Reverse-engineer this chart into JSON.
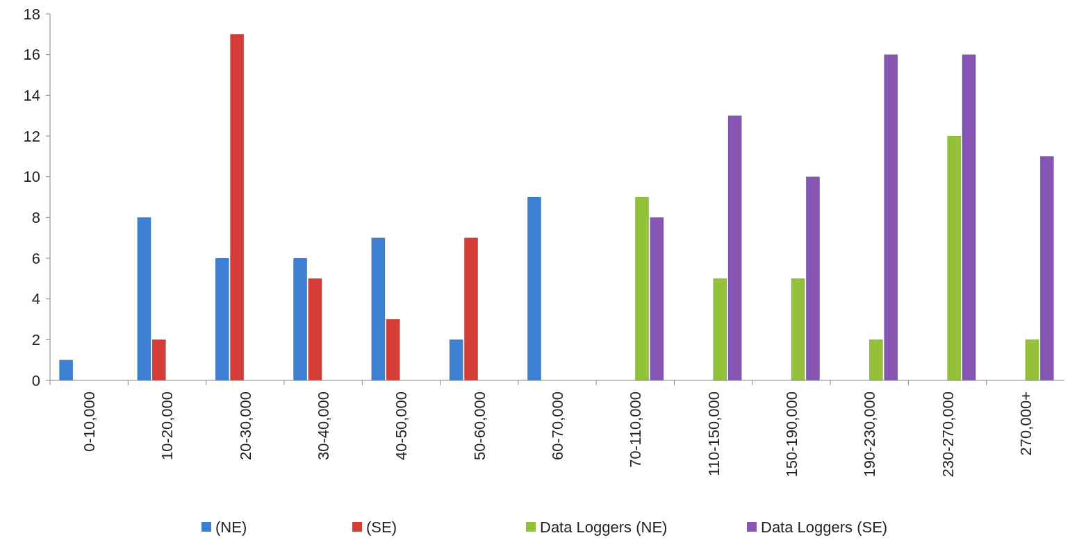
{
  "chart_data": {
    "type": "bar",
    "categories": [
      "0-10,000",
      "10-20,000",
      "20-30,000",
      "30-40,000",
      "40-50,000",
      "50-60,000",
      "60-70,000",
      "70-110,000",
      "110-150,000",
      "150-190,000",
      "190-230,000",
      "230-270,000",
      "270,000+"
    ],
    "series": [
      {
        "name": "(NE)",
        "color": "#3d7fd0",
        "values": [
          1,
          8,
          6,
          6,
          7,
          2,
          9,
          null,
          null,
          null,
          null,
          null,
          null
        ]
      },
      {
        "name": "(SE)",
        "color": "#d63c38",
        "values": [
          null,
          2,
          17,
          5,
          3,
          7,
          null,
          null,
          null,
          null,
          null,
          null,
          null
        ]
      },
      {
        "name": "Data Loggers (NE)",
        "color": "#93c23a",
        "values": [
          null,
          null,
          null,
          null,
          null,
          null,
          null,
          9,
          5,
          5,
          2,
          12,
          2
        ]
      },
      {
        "name": "Data Loggers (SE)",
        "color": "#8556b4",
        "values": [
          null,
          null,
          null,
          null,
          null,
          null,
          null,
          8,
          13,
          10,
          16,
          16,
          11
        ]
      }
    ],
    "ylim": [
      0,
      18
    ],
    "yticks": [
      0,
      2,
      4,
      6,
      8,
      10,
      12,
      14,
      16,
      18
    ],
    "grid": false,
    "legend": "bottom"
  }
}
